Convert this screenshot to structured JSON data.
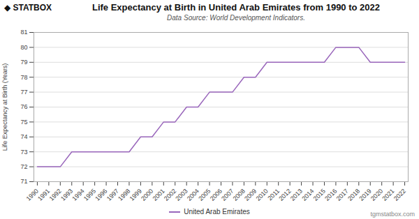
{
  "chart_data": {
    "type": "line",
    "title": "Life Expectancy at Birth in United Arab Emirates from 1990 to 2022",
    "subtitle": "Data Source: World Development Indicators.",
    "ylabel": "Life Expectancy at Birth (Years)",
    "annotations": [
      "◆ STATBOX",
      "tgmstatbox.com"
    ],
    "x": [
      1990,
      1991,
      1992,
      1993,
      1994,
      1995,
      1996,
      1997,
      1998,
      1999,
      2000,
      2001,
      2002,
      2003,
      2004,
      2005,
      2006,
      2007,
      2008,
      2009,
      2010,
      2011,
      2012,
      2013,
      2014,
      2015,
      2016,
      2017,
      2018,
      2019,
      2020,
      2021,
      2022
    ],
    "series": [
      {
        "name": "United Arab Emirates",
        "color": "#9966bb",
        "values": [
          72.0,
          72.0,
          72.0,
          73.0,
          73.0,
          73.0,
          73.0,
          73.0,
          73.0,
          74.0,
          74.0,
          75.0,
          75.0,
          76.0,
          76.0,
          77.0,
          77.0,
          77.0,
          78.0,
          78.0,
          79.0,
          79.0,
          79.0,
          79.0,
          79.0,
          79.0,
          80.0,
          80.0,
          80.0,
          79.0,
          79.0,
          79.0,
          79.0
        ]
      }
    ],
    "xlim": [
      1989.7,
      2022.3
    ],
    "xticks": [
      1990,
      1991,
      1992,
      1993,
      1994,
      1995,
      1996,
      1997,
      1998,
      1999,
      2000,
      2001,
      2002,
      2003,
      2004,
      2005,
      2006,
      2007,
      2008,
      2009,
      2010,
      2011,
      2012,
      2013,
      2014,
      2015,
      2016,
      2017,
      2018,
      2019,
      2020,
      2021,
      2022
    ],
    "ylim": [
      71,
      81
    ],
    "yticks": [
      71,
      72,
      73,
      74,
      75,
      76,
      77,
      78,
      79,
      80,
      81
    ],
    "grid": true,
    "legend": "bottom"
  }
}
